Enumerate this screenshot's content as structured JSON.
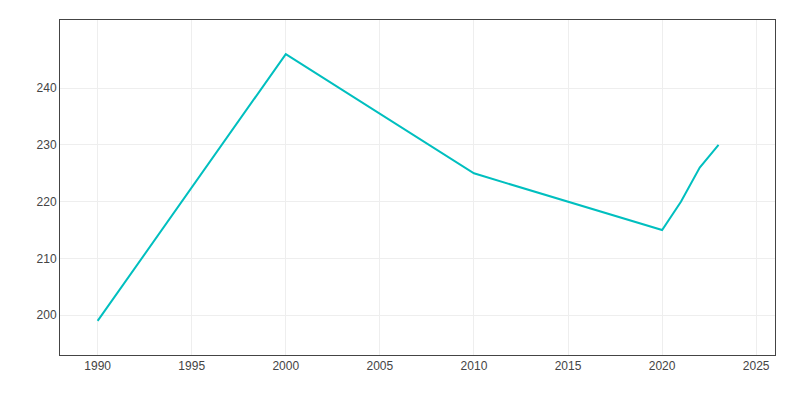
{
  "chart_data": {
    "type": "line",
    "x": [
      1990,
      2000,
      2010,
      2020,
      2021,
      2022,
      2023
    ],
    "values": [
      199,
      246,
      225,
      215,
      220,
      226,
      230
    ],
    "color": "#00BFBF",
    "xlim": [
      1988,
      2026
    ],
    "ylim": [
      193,
      252
    ],
    "xticks": [
      1990,
      1995,
      2000,
      2005,
      2010,
      2015,
      2020,
      2025
    ],
    "yticks": [
      200,
      210,
      220,
      230,
      240
    ],
    "grid": true
  }
}
